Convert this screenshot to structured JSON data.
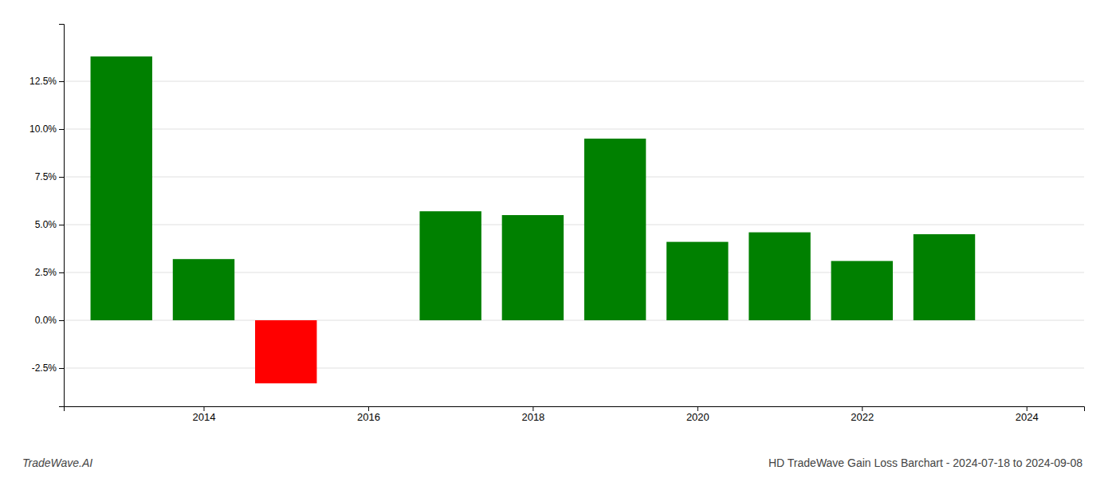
{
  "chart_data": {
    "type": "bar",
    "title": "HD TradeWave Gain Loss Barchart - 2024-07-18 to 2024-09-08",
    "annotations": [
      "TradeWave.AI"
    ],
    "x": [
      2013,
      2014,
      2015,
      2017,
      2018,
      2019,
      2020,
      2021,
      2022,
      2023
    ],
    "values": [
      0.138,
      0.032,
      -0.033,
      0.057,
      0.055,
      0.095,
      0.041,
      0.046,
      0.031,
      0.045
    ],
    "colors": [
      "#008000",
      "#008000",
      "#ff0000",
      "#008000",
      "#008000",
      "#008000",
      "#008000",
      "#008000",
      "#008000",
      "#008000"
    ],
    "xlim": [
      2012.3,
      2024.7
    ],
    "xticks": [
      2014,
      2016,
      2018,
      2020,
      2022,
      2024
    ],
    "ylim": [
      -0.045,
      0.155
    ],
    "yticks": [
      {
        "value": -0.025,
        "label": "-2.5%"
      },
      {
        "value": 0.0,
        "label": "0.0%"
      },
      {
        "value": 0.025,
        "label": "2.5%"
      },
      {
        "value": 0.05,
        "label": "5.0%"
      },
      {
        "value": 0.075,
        "label": "7.5%"
      },
      {
        "value": 0.1,
        "label": "10.0%"
      },
      {
        "value": 0.125,
        "label": "12.5%"
      }
    ],
    "grid": true
  }
}
